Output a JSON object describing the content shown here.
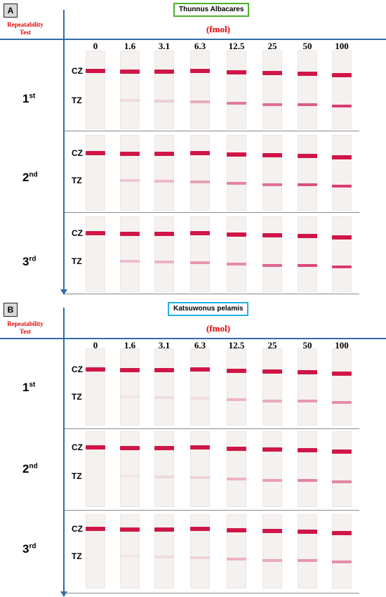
{
  "panels": [
    {
      "label": "A",
      "species": "Thunnus Albacares",
      "species_color": "#4caf2e",
      "row_header": "Repeatability Test",
      "unit": "(fmol)",
      "concentrations": [
        "0",
        "1.6",
        "3.1",
        "6.3",
        "12.5",
        "25",
        "50",
        "100"
      ],
      "zone_labels": {
        "control": "CZ",
        "test": "TZ"
      },
      "rows": [
        {
          "ordinal": "1",
          "suffix": "st",
          "test_line_intensity": [
            0,
            0.1,
            0.18,
            0.35,
            0.6,
            0.65,
            0.75,
            0.9
          ]
        },
        {
          "ordinal": "2",
          "suffix": "nd",
          "test_line_intensity": [
            0,
            0.2,
            0.28,
            0.4,
            0.55,
            0.65,
            0.8,
            0.9
          ]
        },
        {
          "ordinal": "3",
          "suffix": "rd",
          "test_line_intensity": [
            0,
            0.25,
            0.3,
            0.45,
            0.5,
            0.7,
            0.85,
            0.9
          ]
        }
      ]
    },
    {
      "label": "B",
      "species": "Katsuwonus pelamis",
      "species_color": "#22b0e6",
      "row_header": "Repeatability Test",
      "unit": "(fmol)",
      "concentrations": [
        "0",
        "1.6",
        "3.1",
        "6.3",
        "12.5",
        "25",
        "50",
        "100"
      ],
      "zone_labels": {
        "control": "CZ",
        "test": "TZ"
      },
      "rows": [
        {
          "ordinal": "1",
          "suffix": "st",
          "test_line_intensity": [
            0,
            0.05,
            0.1,
            0.1,
            0.3,
            0.35,
            0.45,
            0.5
          ]
        },
        {
          "ordinal": "2",
          "suffix": "nd",
          "test_line_intensity": [
            0,
            0.05,
            0.12,
            0.15,
            0.3,
            0.4,
            0.55,
            0.55
          ]
        },
        {
          "ordinal": "3",
          "suffix": "rd",
          "test_line_intensity": [
            0,
            0.05,
            0.1,
            0.15,
            0.3,
            0.35,
            0.45,
            0.5
          ]
        }
      ]
    }
  ]
}
